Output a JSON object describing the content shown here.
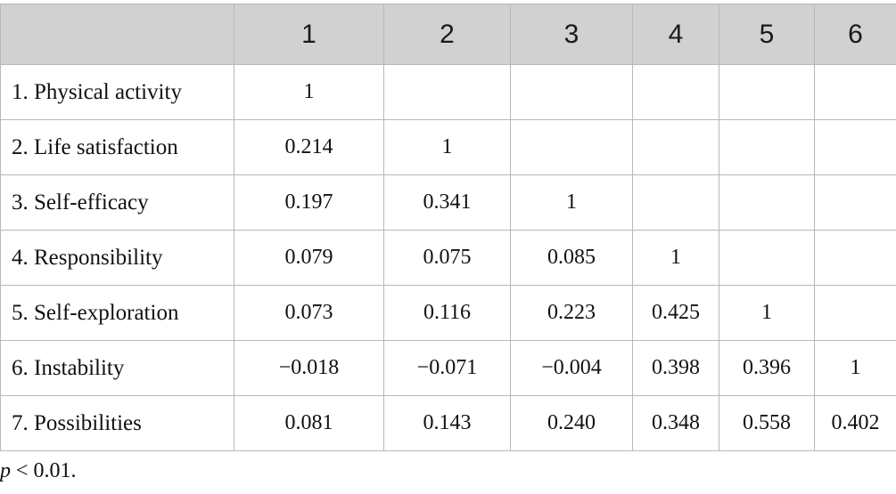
{
  "table": {
    "headers": [
      "",
      "1",
      "2",
      "3",
      "4",
      "5",
      "6"
    ],
    "rows": [
      {
        "label": "1. Physical activity",
        "values": [
          "1",
          "",
          "",
          "",
          "",
          ""
        ]
      },
      {
        "label": "2. Life satisfaction",
        "values": [
          "0.214",
          "1",
          "",
          "",
          "",
          ""
        ]
      },
      {
        "label": "3. Self-efficacy",
        "values": [
          "0.197",
          "0.341",
          "1",
          "",
          "",
          ""
        ]
      },
      {
        "label": "4. Responsibility",
        "values": [
          "0.079",
          "0.075",
          "0.085",
          "1",
          "",
          ""
        ]
      },
      {
        "label": "5. Self-exploration",
        "values": [
          "0.073",
          "0.116",
          "0.223",
          "0.425",
          "1",
          ""
        ]
      },
      {
        "label": "6. Instability",
        "values": [
          "−0.018",
          "−0.071",
          "−0.004",
          "0.398",
          "0.396",
          "1"
        ]
      },
      {
        "label": "7. Possibilities",
        "values": [
          "0.081",
          "0.143",
          "0.240",
          "0.348",
          "0.558",
          "0.402"
        ]
      }
    ]
  },
  "footnote": {
    "variable": "p",
    "text": " < 0.01."
  }
}
